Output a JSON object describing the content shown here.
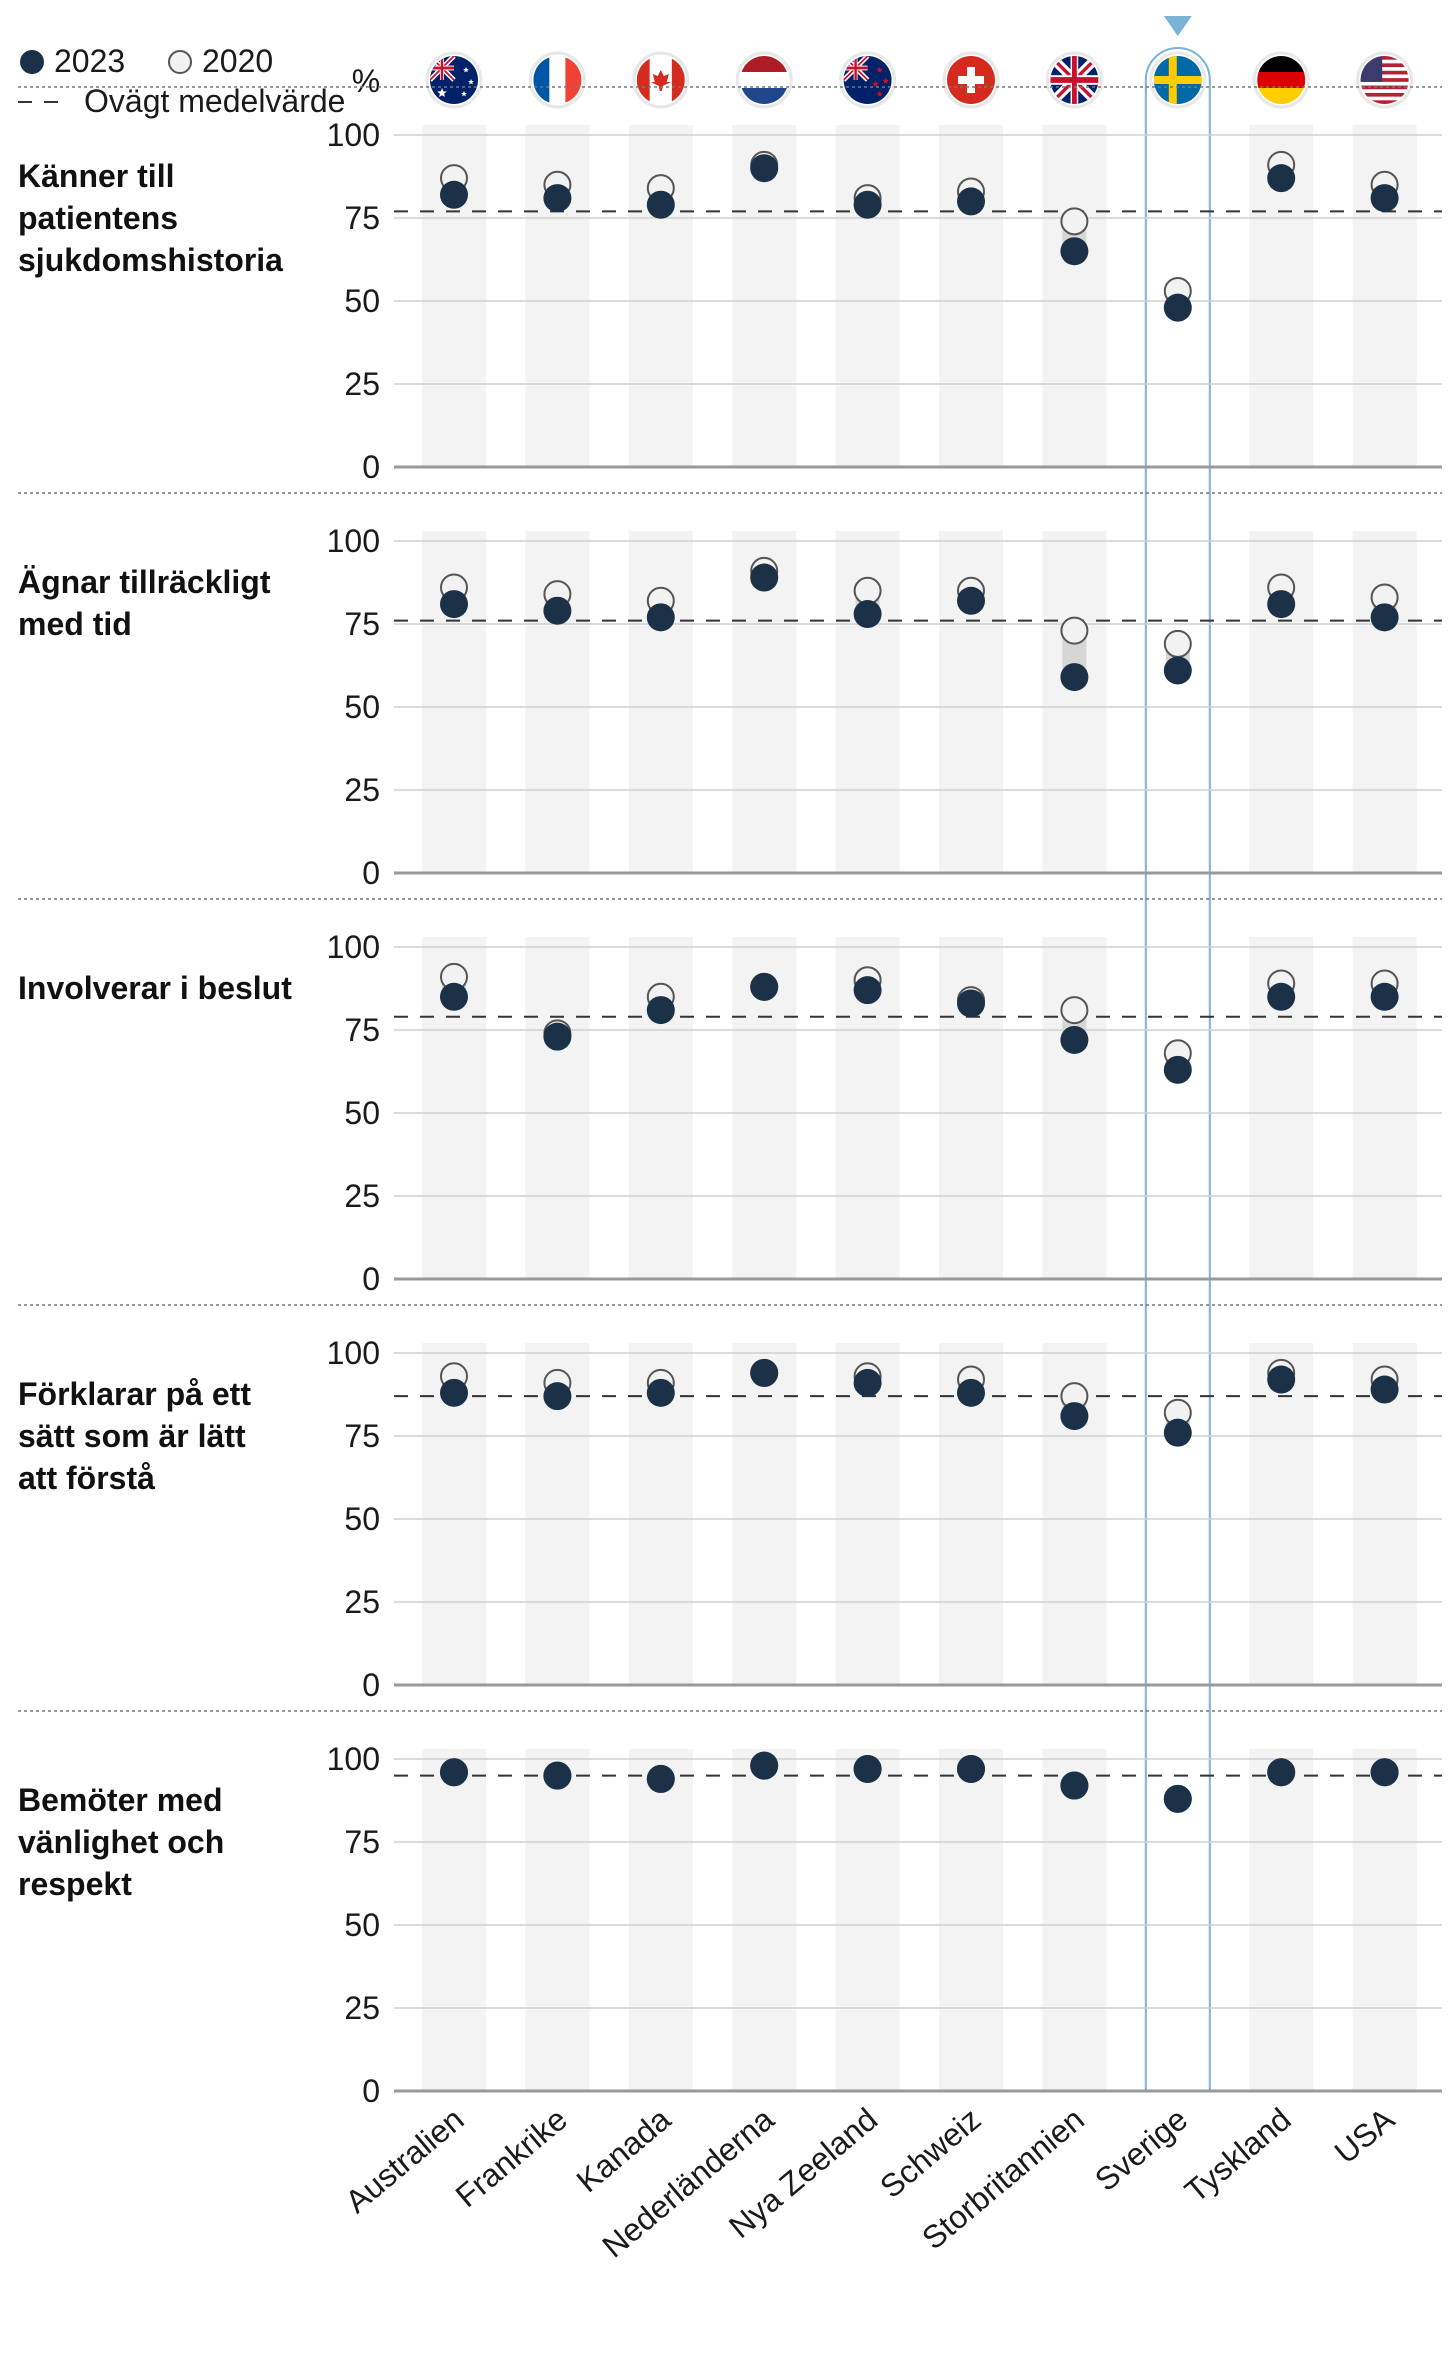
{
  "legend": {
    "series_2023": "2023",
    "series_2020": "2020",
    "average": "Ovägt medelvärde",
    "unit": "%"
  },
  "colors": {
    "dot_2023": "#1b3148",
    "dot_2020_fill": "#f2f2f2",
    "dot_2020_stroke": "#555555",
    "column_band": "#f3f3f3",
    "highlight": "#7ab3d6",
    "gridline": "#cfcfcf",
    "baseline": "#999999",
    "average_line": "#333333",
    "divider": "#777777"
  },
  "highlight_country": "Sverige",
  "chart_data": {
    "type": "scatter",
    "unit": "%",
    "ylim": [
      0,
      100
    ],
    "yticks": [
      "100",
      "75",
      "50",
      "25",
      "0"
    ],
    "categories": [
      "Australien",
      "Frankrike",
      "Kanada",
      "Nederländerna",
      "Nya Zeeland",
      "Schweiz",
      "Storbritannien",
      "Sverige",
      "Tyskland",
      "USA"
    ],
    "flags": [
      "australia-flag",
      "france-flag",
      "canada-flag",
      "netherlands-flag",
      "new-zealand-flag",
      "switzerland-flag",
      "uk-flag",
      "sweden-flag",
      "germany-flag",
      "usa-flag"
    ],
    "panels": [
      {
        "label": "Känner till patientens sjukdomshistoria",
        "label_lines": [
          "Känner till",
          "patientens",
          "sjukdomshistoria"
        ],
        "average": 77,
        "series": [
          {
            "name": "2023",
            "values": [
              82,
              81,
              79,
              90,
              79,
              80,
              65,
              48,
              87,
              81
            ]
          },
          {
            "name": "2020",
            "values": [
              87,
              85,
              84,
              91,
              81,
              83,
              74,
              53,
              91,
              85
            ]
          }
        ]
      },
      {
        "label": "Ägnar tillräckligt med tid",
        "label_lines": [
          "Ägnar tillräckligt",
          "med tid"
        ],
        "average": 76,
        "series": [
          {
            "name": "2023",
            "values": [
              81,
              79,
              77,
              89,
              78,
              82,
              59,
              61,
              81,
              77
            ]
          },
          {
            "name": "2020",
            "values": [
              86,
              84,
              82,
              91,
              85,
              85,
              73,
              69,
              86,
              83
            ]
          }
        ]
      },
      {
        "label": "Involverar i beslut",
        "label_lines": [
          "Involverar i beslut"
        ],
        "average": 79,
        "series": [
          {
            "name": "2023",
            "values": [
              85,
              73,
              81,
              88,
              87,
              83,
              72,
              63,
              85,
              85
            ]
          },
          {
            "name": "2020",
            "values": [
              91,
              74,
              85,
              88,
              90,
              84,
              81,
              68,
              89,
              89
            ]
          }
        ]
      },
      {
        "label": "Förklarar på ett sätt som är lätt att förstå",
        "label_lines": [
          "Förklarar på ett",
          "sätt som är lätt",
          "att förstå"
        ],
        "average": 87,
        "series": [
          {
            "name": "2023",
            "values": [
              88,
              87,
              88,
              94,
              91,
              88,
              81,
              76,
              92,
              89
            ]
          },
          {
            "name": "2020",
            "values": [
              93,
              91,
              91,
              94,
              93,
              92,
              87,
              82,
              94,
              92
            ]
          }
        ]
      },
      {
        "label": "Bemöter med vänlighet och respekt",
        "label_lines": [
          "Bemöter med",
          "vänlighet och",
          "respekt"
        ],
        "average": 95,
        "series": [
          {
            "name": "2023",
            "values": [
              96,
              95,
              94,
              98,
              97,
              97,
              92,
              88,
              96,
              96
            ]
          },
          {
            "name": "2020",
            "values": [
              96,
              95,
              94,
              98,
              97,
              97,
              92,
              88,
              96,
              96
            ]
          }
        ]
      }
    ]
  }
}
